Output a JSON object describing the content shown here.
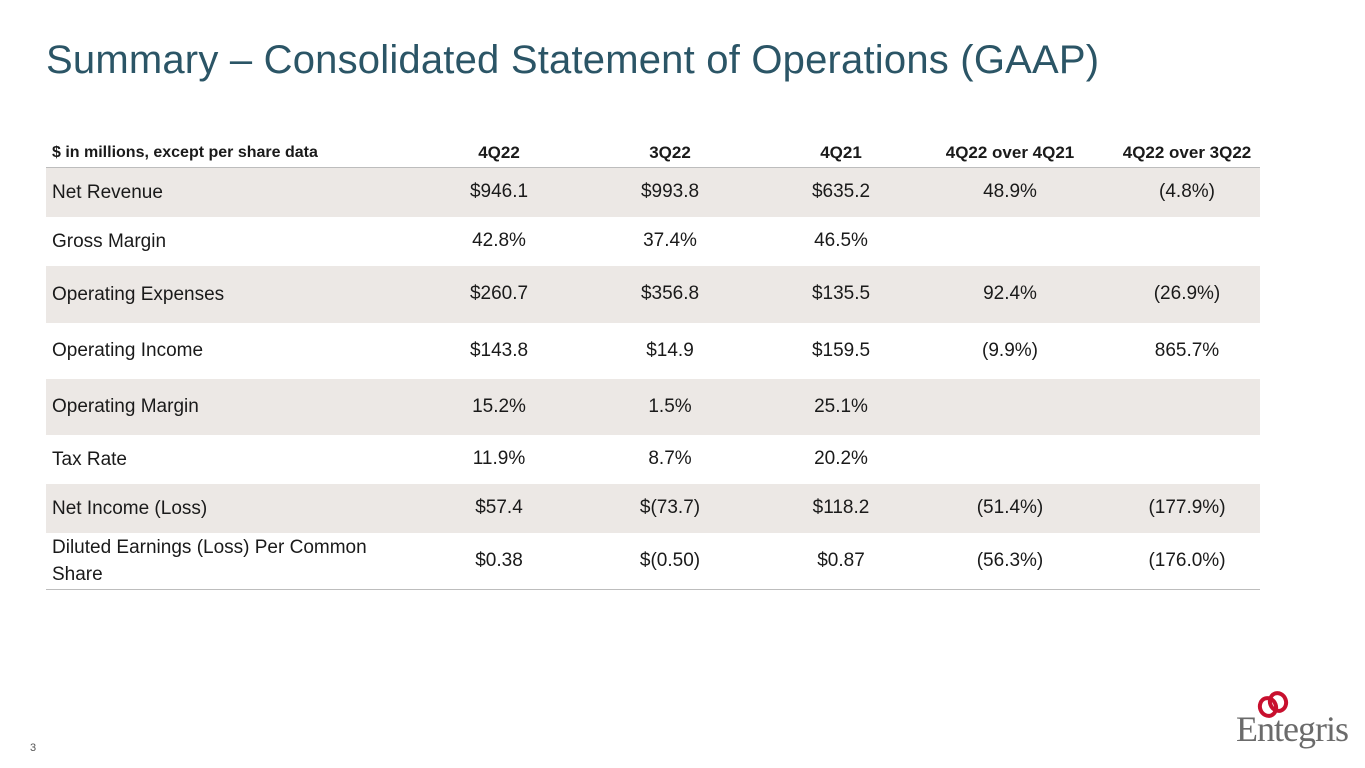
{
  "slide": {
    "title": "Summary – Consolidated Statement of Operations (GAAP)",
    "page_number": "3",
    "logo_text": "Entegris"
  },
  "table": {
    "headers": [
      "$ in millions, except per share data",
      "4Q22",
      "3Q22",
      "4Q21",
      "4Q22 over 4Q21",
      "4Q22 over 3Q22"
    ],
    "rows": [
      [
        "Net Revenue",
        "$946.1",
        "$993.8",
        "$635.2",
        "48.9%",
        "(4.8%)"
      ],
      [
        "Gross Margin",
        "42.8%",
        "37.4%",
        "46.5%",
        "",
        ""
      ],
      [
        "Operating Expenses",
        "$260.7",
        "$356.8",
        "$135.5",
        "92.4%",
        "(26.9%)"
      ],
      [
        "Operating Income",
        "$143.8",
        "$14.9",
        "$159.5",
        "(9.9%)",
        "865.7%"
      ],
      [
        "Operating Margin",
        "15.2%",
        "1.5%",
        "25.1%",
        "",
        ""
      ],
      [
        "Tax Rate",
        "11.9%",
        "8.7%",
        "20.2%",
        "",
        ""
      ],
      [
        "Net Income (Loss)",
        "$57.4",
        "$(73.7)",
        "$118.2",
        "(51.4%)",
        "(177.9%)"
      ],
      [
        "Diluted Earnings (Loss) Per Common Share",
        "$0.38",
        "$(0.50)",
        "$0.87",
        "(56.3%)",
        "(176.0%)"
      ]
    ]
  },
  "colors": {
    "title": "#2b5566",
    "row_shade": "#ece8e5",
    "logo_red": "#c8102e",
    "logo_gray": "#6b6b6b"
  }
}
